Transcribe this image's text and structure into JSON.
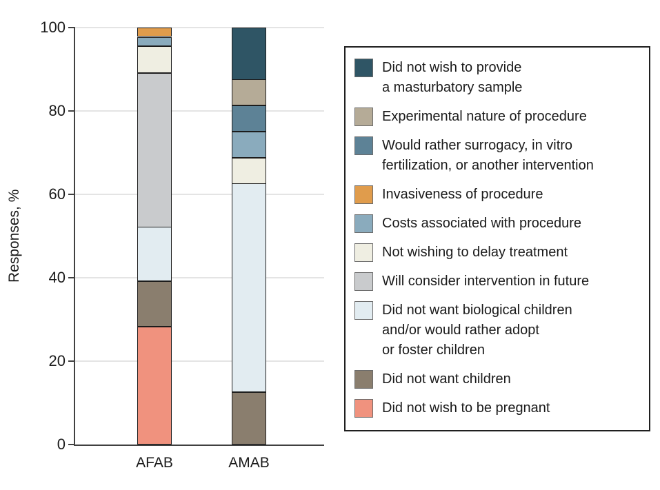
{
  "figure": {
    "ylabel": "Responses, %"
  },
  "chart_data": {
    "type": "bar",
    "subtype": "stacked-vertical",
    "title": "",
    "ylabel": "Responses, %",
    "xlabel": "",
    "ylim": [
      0,
      100
    ],
    "yticks": [
      0,
      20,
      40,
      60,
      80,
      100
    ],
    "grid": true,
    "legend_position": "right",
    "categories": [
      "AFAB",
      "AMAB"
    ],
    "stack_order_note": "bars stack bottom-to-top in reverse of legend order",
    "series": [
      {
        "name": "Did not wish to provide\na masturbatory sample",
        "color": "#2f5565",
        "values": [
          0,
          12.5
        ]
      },
      {
        "name": "Experimental nature of procedure",
        "color": "#b5ab97",
        "values": [
          0,
          6.25
        ]
      },
      {
        "name": "Would rather surrogacy, in vitro\nfertilization, or another intervention",
        "color": "#5d8296",
        "values": [
          0,
          6.25
        ]
      },
      {
        "name": "Invasiveness of procedure",
        "color": "#e09c4c",
        "values": [
          2.2,
          0
        ]
      },
      {
        "name": "Costs associated with procedure",
        "color": "#8aabbd",
        "values": [
          2.2,
          6.25
        ]
      },
      {
        "name": "Not wishing to delay treatment",
        "color": "#efeee2",
        "values": [
          6.5,
          6.25
        ]
      },
      {
        "name": "Will consider intervention in future",
        "color": "#c9cbcd",
        "values": [
          37.0,
          0
        ]
      },
      {
        "name": "Did not want biological children\nand/or would rather adopt\nor foster children",
        "color": "#e2ecf1",
        "values": [
          13.0,
          50.0
        ]
      },
      {
        "name": "Did not want children",
        "color": "#8a7e6e",
        "values": [
          10.9,
          12.5
        ]
      },
      {
        "name": "Did not wish to be pregnant",
        "color": "#f0927e",
        "values": [
          28.3,
          0
        ]
      }
    ]
  }
}
